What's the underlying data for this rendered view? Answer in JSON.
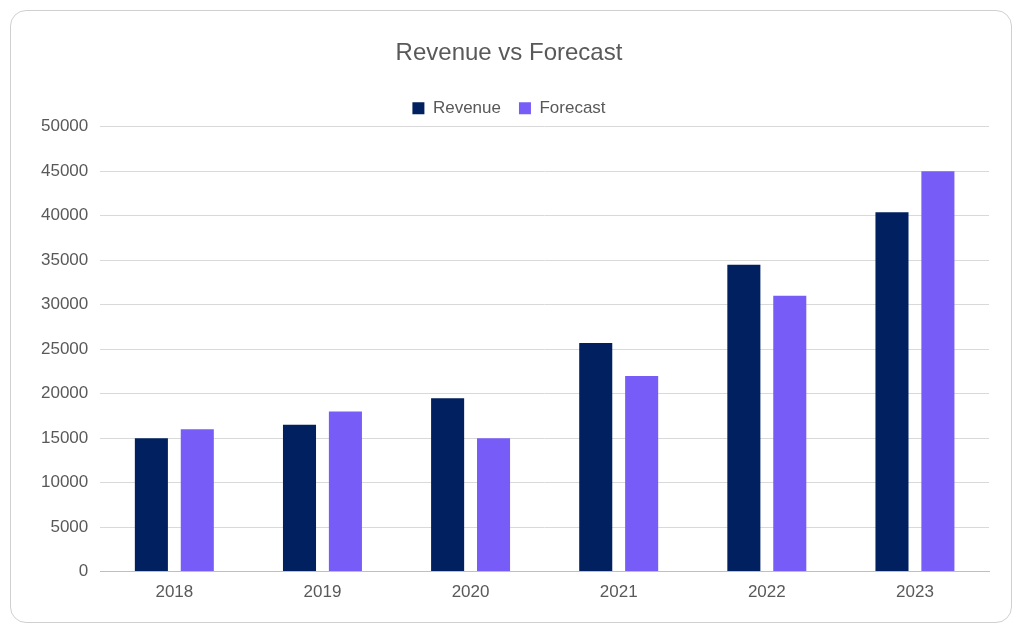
{
  "chart_data": {
    "type": "bar",
    "title": "Revenue vs Forecast",
    "categories": [
      "2018",
      "2019",
      "2020",
      "2021",
      "2022",
      "2023"
    ],
    "series": [
      {
        "name": "Revenue",
        "color": "#002060",
        "values": [
          15000,
          16500,
          19500,
          25700,
          34500,
          40400
        ]
      },
      {
        "name": "Forecast",
        "color": "#785cf7",
        "values": [
          16000,
          18000,
          15000,
          22000,
          31000,
          45000
        ]
      }
    ],
    "ylim": [
      0,
      50000
    ],
    "yticks": [
      0,
      5000,
      10000,
      15000,
      20000,
      25000,
      30000,
      35000,
      40000,
      45000,
      50000
    ],
    "grid": true,
    "legend": "top"
  }
}
